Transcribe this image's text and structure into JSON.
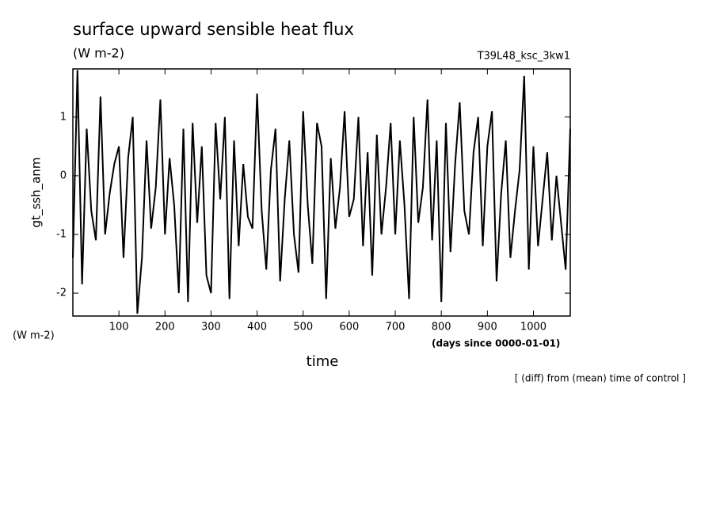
{
  "chart_data": {
    "type": "line",
    "title": "surface upward sensible heat flux",
    "subtitle": "(W m-2)",
    "run_label": "T39L48_ksc_3kw1",
    "y_label": "gt_ssh_anm",
    "y_units": "(W m-2)",
    "x_label": "time",
    "x_units": "(days since 0000-01-01)",
    "annotation": "[ (diff) from (mean) time of control ]",
    "color": "#000000",
    "xlim": [
      0,
      1080
    ],
    "ylim": [
      -2.39,
      1.82
    ],
    "xticks": [
      100,
      200,
      300,
      400,
      500,
      600,
      700,
      800,
      900,
      1000
    ],
    "yticks": [
      -2,
      -1,
      0,
      1
    ],
    "x": [
      0,
      10,
      20,
      30,
      40,
      50,
      60,
      70,
      80,
      90,
      100,
      110,
      120,
      130,
      140,
      150,
      160,
      170,
      180,
      190,
      200,
      210,
      220,
      230,
      240,
      250,
      260,
      270,
      280,
      290,
      300,
      310,
      320,
      330,
      340,
      350,
      360,
      370,
      380,
      390,
      400,
      410,
      420,
      430,
      440,
      450,
      460,
      470,
      480,
      490,
      500,
      510,
      520,
      530,
      540,
      550,
      560,
      570,
      580,
      590,
      600,
      610,
      620,
      630,
      640,
      650,
      660,
      670,
      680,
      690,
      700,
      710,
      720,
      730,
      740,
      750,
      760,
      770,
      780,
      790,
      800,
      810,
      820,
      830,
      840,
      850,
      860,
      870,
      880,
      890,
      900,
      910,
      920,
      930,
      940,
      950,
      960,
      970,
      980,
      990,
      1000,
      1010,
      1020,
      1030,
      1040,
      1050,
      1060,
      1070,
      1080
    ],
    "values": [
      -1.4,
      1.8,
      -1.85,
      0.8,
      -0.6,
      -1.1,
      1.35,
      -1.0,
      -0.3,
      0.2,
      0.5,
      -1.4,
      0.3,
      1.0,
      -2.35,
      -1.4,
      0.6,
      -0.9,
      -0.2,
      1.3,
      -1.0,
      0.3,
      -0.5,
      -2.0,
      0.8,
      -2.15,
      0.9,
      -0.8,
      0.5,
      -1.7,
      -2.0,
      0.9,
      -0.4,
      1.0,
      -2.1,
      0.6,
      -1.2,
      0.2,
      -0.7,
      -0.9,
      1.4,
      -0.6,
      -1.6,
      0.1,
      0.8,
      -1.8,
      -0.4,
      0.6,
      -1.0,
      -1.65,
      1.1,
      -0.5,
      -1.5,
      0.9,
      0.5,
      -2.1,
      0.3,
      -0.9,
      -0.2,
      1.1,
      -0.7,
      -0.4,
      1.0,
      -1.2,
      0.4,
      -1.7,
      0.7,
      -1.0,
      -0.2,
      0.9,
      -1.0,
      0.6,
      -0.5,
      -2.1,
      1.0,
      -0.8,
      -0.2,
      1.3,
      -1.1,
      0.6,
      -2.15,
      0.9,
      -1.3,
      0.2,
      1.25,
      -0.6,
      -1.0,
      0.4,
      1.0,
      -1.2,
      0.5,
      1.1,
      -1.8,
      -0.3,
      0.6,
      -1.4,
      -0.6,
      0.1,
      1.7,
      -1.6,
      0.5,
      -1.2,
      -0.4,
      0.4,
      -1.1,
      0.0,
      -0.8,
      -1.6,
      0.8
    ]
  }
}
